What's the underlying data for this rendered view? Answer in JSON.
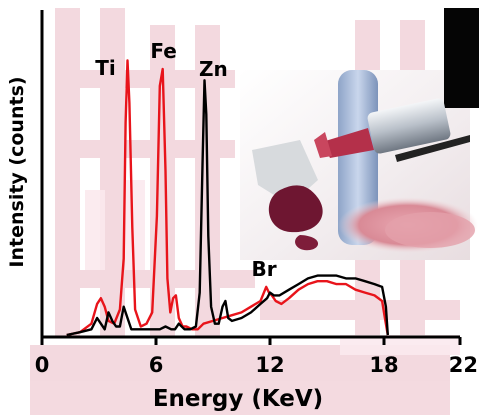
{
  "chart_data": {
    "type": "line",
    "xlabel": "Energy (KeV)",
    "ylabel": "Intensity (counts)",
    "xlim": [
      0,
      22
    ],
    "ylim": [
      0,
      100
    ],
    "xticks": [
      "0",
      "6",
      "12",
      "18",
      "22"
    ],
    "xtick_values": [
      0,
      6,
      12,
      18,
      22
    ],
    "grid": false,
    "legend": "none",
    "annotations": [
      {
        "text": "Ti",
        "x": 4.5
      },
      {
        "text": "Fe",
        "x": 6.4
      },
      {
        "text": "Zn",
        "x": 8.6
      },
      {
        "text": "Br",
        "x": 11.9
      }
    ],
    "series": [
      {
        "color": "#e8141b",
        "x": [
          1.3,
          2.0,
          2.6,
          2.9,
          3.1,
          3.3,
          3.5,
          3.8,
          4.1,
          4.3,
          4.4,
          4.5,
          4.6,
          4.75,
          4.9,
          5.2,
          5.5,
          5.8,
          6.05,
          6.2,
          6.35,
          6.5,
          6.6,
          6.75,
          6.9,
          7.05,
          7.2,
          7.4,
          7.6,
          7.9,
          8.2,
          8.5,
          9.0,
          9.5,
          10.0,
          10.5,
          11.0,
          11.5,
          11.8,
          11.95,
          12.1,
          12.3,
          12.6,
          13.0,
          13.5,
          14.0,
          14.5,
          15.0,
          15.5,
          16.0,
          16.5,
          17.0,
          17.5,
          17.9,
          18.05,
          18.2
        ],
        "y": [
          0,
          1,
          4,
          11,
          13,
          10,
          5,
          4,
          9,
          27,
          75,
          97,
          82,
          38,
          9,
          3,
          4,
          8,
          42,
          88,
          94,
          58,
          20,
          8,
          13,
          14,
          6,
          3,
          3,
          2,
          2,
          4,
          5,
          6,
          7,
          8,
          10,
          12,
          17,
          15,
          14,
          12,
          11,
          13,
          16,
          18,
          19,
          19,
          18,
          18,
          16,
          15,
          14,
          12,
          6,
          0
        ]
      },
      {
        "color": "#000000",
        "x": [
          1.3,
          2.0,
          2.6,
          2.9,
          3.1,
          3.3,
          3.5,
          3.7,
          3.9,
          4.1,
          4.3,
          4.5,
          4.7,
          5.0,
          5.3,
          5.6,
          5.9,
          6.2,
          6.5,
          6.8,
          7.0,
          7.2,
          7.5,
          7.8,
          8.1,
          8.3,
          8.45,
          8.55,
          8.65,
          8.75,
          8.9,
          9.1,
          9.3,
          9.5,
          9.65,
          9.8,
          10.0,
          10.5,
          11.0,
          11.5,
          11.85,
          12.0,
          12.2,
          12.5,
          13.0,
          13.5,
          14.0,
          14.5,
          15.0,
          15.5,
          16.0,
          16.5,
          17.0,
          17.5,
          17.9,
          18.1,
          18.2
        ],
        "y": [
          0,
          1,
          2,
          6,
          4,
          2,
          8,
          5,
          3,
          3,
          10,
          6,
          2,
          2,
          2,
          2,
          2,
          2,
          3,
          2,
          2,
          4,
          2,
          2,
          3,
          15,
          60,
          90,
          78,
          35,
          10,
          4,
          4,
          10,
          12,
          6,
          5,
          6,
          8,
          11,
          13,
          15,
          14,
          14,
          16,
          18,
          20,
          21,
          21,
          21,
          20,
          20,
          19,
          18,
          17,
          10,
          0
        ]
      }
    ]
  }
}
